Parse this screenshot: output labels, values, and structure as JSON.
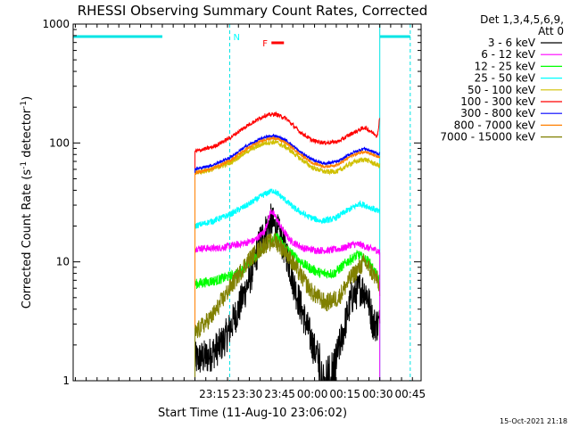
{
  "chart_data": {
    "type": "line",
    "title": "RHESSI Observing Summary Count Rates, Corrected",
    "xlabel": "Start Time (11-Aug-10 23:06:02)",
    "ylabel_main": "Corrected Count Rate (s",
    "ylabel_sup1": "-1",
    "ylabel_mid": " detector",
    "ylabel_sup2": "-1",
    "ylabel_end": ")",
    "yscale": "log",
    "ylim": [
      1,
      1000
    ],
    "xlim_minutes": [
      -56,
      104
    ],
    "x_ticks": [
      {
        "m": 9,
        "label": "23:15"
      },
      {
        "m": 24,
        "label": "23:30"
      },
      {
        "m": 39,
        "label": "23:45"
      },
      {
        "m": 54,
        "label": "00:00"
      },
      {
        "m": 69,
        "label": "00:15"
      },
      {
        "m": 84,
        "label": "00:30"
      },
      {
        "m": 99,
        "label": "00:45"
      }
    ],
    "y_ticks": [
      {
        "v": 1,
        "label": "1"
      },
      {
        "v": 10,
        "label": "10"
      },
      {
        "v": 100,
        "label": "100"
      },
      {
        "v": 1000,
        "label": "1000"
      }
    ],
    "detector_header": [
      "Det 1,3,4,5,6,9,",
      "Att 0"
    ],
    "legend": [
      "3 - 6 keV",
      "6 - 12 keV",
      "12 - 25 keV",
      "25 - 50 keV",
      "50 - 100 keV",
      "100 - 300 keV",
      "300 - 800 keV",
      "800 - 7000 keV",
      "7000 - 15000 keV"
    ],
    "series": [
      {
        "name": "3 - 6 keV",
        "color": "#000000",
        "x": [
          0,
          6,
          12,
          15,
          20,
          26,
          30,
          35,
          38,
          42,
          46,
          50,
          55,
          60,
          64,
          68,
          72,
          76,
          79,
          82,
          85
        ],
        "values": [
          1.5,
          1.6,
          2,
          2.5,
          4,
          8,
          15,
          22,
          18,
          12,
          6,
          3.5,
          1.8,
          1.2,
          1.3,
          2.5,
          5,
          6,
          5.5,
          3,
          3
        ]
      },
      {
        "name": "6 - 12 keV",
        "color": "#ff00ff",
        "x": [
          0,
          10,
          20,
          27,
          32,
          35,
          37,
          40,
          44,
          50,
          56,
          62,
          68,
          72,
          76,
          80,
          84,
          85
        ],
        "values": [
          13,
          13,
          14,
          15,
          18,
          27,
          24,
          19,
          15,
          13,
          12.5,
          12.5,
          13,
          14,
          14,
          13,
          12.5,
          12
        ]
      },
      {
        "name": "12 - 25 keV",
        "color": "#00ff00",
        "x": [
          0,
          10,
          20,
          28,
          34,
          38,
          42,
          46,
          52,
          58,
          64,
          70,
          75,
          80,
          84,
          85
        ],
        "values": [
          6.5,
          7,
          8,
          11,
          15,
          16,
          13,
          11,
          9,
          8,
          8,
          10,
          11.5,
          10,
          7.5,
          7
        ]
      },
      {
        "name": "25 - 50 keV",
        "color": "#00ffff",
        "x": [
          0,
          8,
          16,
          24,
          32,
          36,
          40,
          46,
          52,
          58,
          64,
          70,
          76,
          82,
          85
        ],
        "values": [
          20,
          22,
          25,
          30,
          37,
          40,
          35,
          28,
          24,
          22,
          23,
          27,
          31,
          28,
          26
        ]
      },
      {
        "name": "50 - 100 keV",
        "color": "#d0c000",
        "x": [
          0,
          8,
          16,
          24,
          32,
          37,
          42,
          48,
          54,
          60,
          66,
          72,
          78,
          85
        ],
        "values": [
          56,
          60,
          68,
          85,
          100,
          102,
          92,
          75,
          62,
          57,
          58,
          68,
          73,
          64
        ]
      },
      {
        "name": "100 - 300 keV",
        "color": "#ff0000",
        "x": [
          0,
          8,
          16,
          24,
          32,
          37,
          42,
          48,
          54,
          60,
          66,
          72,
          78,
          84,
          85
        ],
        "values": [
          85,
          92,
          110,
          140,
          170,
          175,
          160,
          125,
          105,
          100,
          103,
          120,
          135,
          115,
          170
        ]
      },
      {
        "name": "300 - 800 keV",
        "color": "#0000ff",
        "x": [
          0,
          8,
          16,
          24,
          32,
          37,
          42,
          48,
          54,
          60,
          66,
          72,
          78,
          85
        ],
        "values": [
          60,
          65,
          75,
          95,
          112,
          115,
          105,
          85,
          72,
          67,
          70,
          82,
          90,
          80
        ]
      },
      {
        "name": "800 - 7000 keV",
        "color": "#ff8000",
        "x": [
          0,
          8,
          16,
          24,
          32,
          37,
          42,
          48,
          54,
          60,
          66,
          72,
          78,
          85
        ],
        "values": [
          56,
          61,
          71,
          90,
          107,
          110,
          100,
          81,
          68,
          63,
          66,
          78,
          85,
          75
        ]
      },
      {
        "name": "7000 - 15000 keV",
        "color": "#808000",
        "x": [
          0,
          8,
          16,
          24,
          32,
          37,
          42,
          48,
          54,
          60,
          66,
          72,
          78,
          84,
          85
        ],
        "values": [
          2.5,
          3.5,
          6,
          10,
          14,
          15,
          12,
          8,
          5.5,
          4.5,
          5,
          7.5,
          10,
          7,
          6
        ]
      }
    ],
    "vlines_cyan_minutes": [
      -56,
      16,
      85,
      99
    ],
    "night_segments": [
      [
        -56,
        -15
      ],
      [
        85,
        99
      ]
    ],
    "markers": [
      {
        "label": "N",
        "x": 16,
        "color": "#00ffff"
      },
      {
        "label": "F",
        "x": 36,
        "color": "#ff0000"
      }
    ],
    "timestamp": "15-Oct-2021 21:18"
  }
}
